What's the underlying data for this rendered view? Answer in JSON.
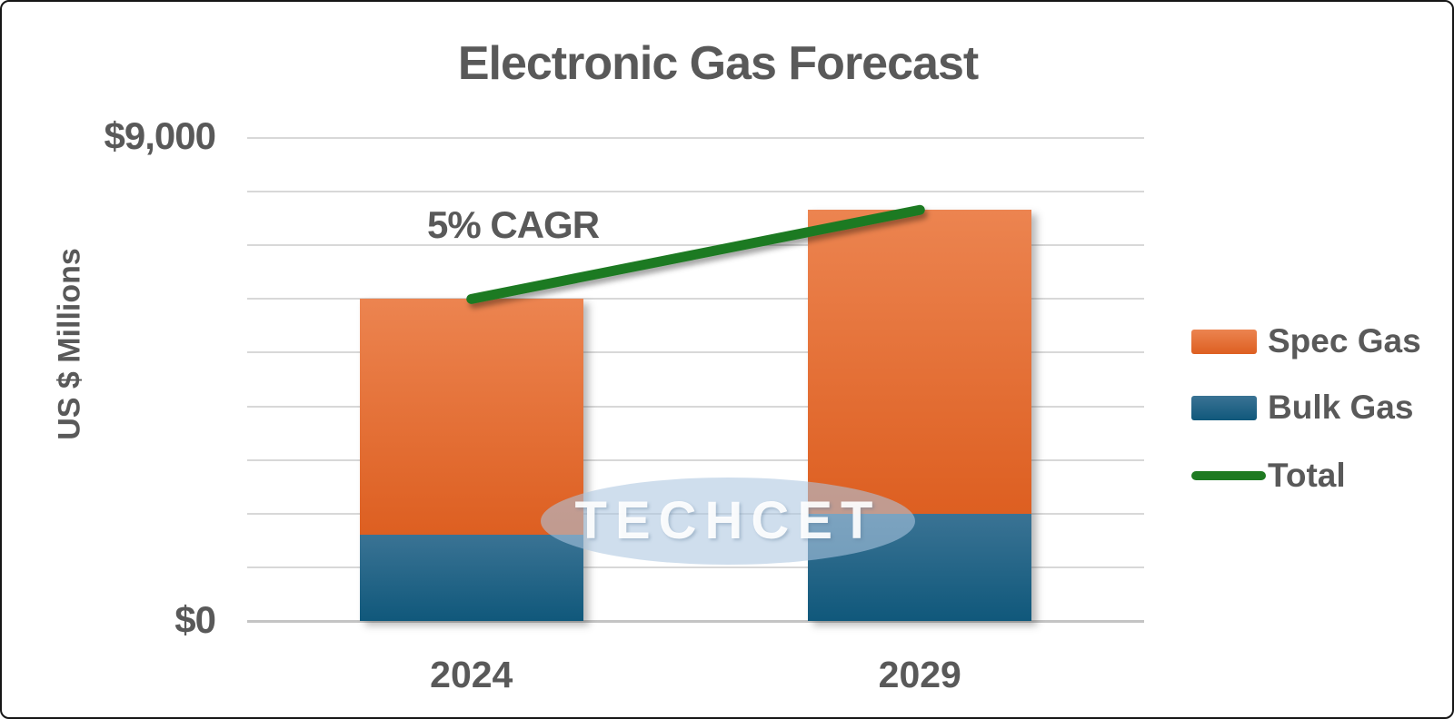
{
  "title": "Electronic Gas Forecast",
  "annotation": "5% CAGR",
  "watermark": "TECHCET",
  "y_axis": {
    "label": "US $ Millions",
    "top_tick": "$9,000",
    "bottom_tick": "$0"
  },
  "legend": {
    "items": [
      "Spec Gas",
      "Bulk Gas",
      "Total"
    ]
  },
  "colors": {
    "text": "#595959",
    "gridline": "#d8d8d8",
    "spec_top": "#ec8450",
    "spec_bottom": "#dd5f21",
    "bulk_top": "#3a7394",
    "bulk_bottom": "#10587b",
    "total_line": "#1e7a21",
    "watermark_band": "#aec6e0",
    "watermark_text": "#ffffff",
    "frame_border": "#161616"
  },
  "chart_data": {
    "type": "bar",
    "stacked": true,
    "title": "Electronic Gas Forecast",
    "ylabel": "US $ Millions",
    "xlabel": "",
    "categories": [
      "2024",
      "2029"
    ],
    "series": [
      {
        "name": "Bulk Gas",
        "type": "bar",
        "color": "#10587b",
        "values": [
          1600,
          2000
        ]
      },
      {
        "name": "Spec Gas",
        "type": "bar",
        "color": "#e06423",
        "values": [
          4400,
          5660
        ]
      },
      {
        "name": "Total",
        "type": "line",
        "color": "#1e7a21",
        "values": [
          6000,
          7660
        ]
      }
    ],
    "annotation": "5% CAGR",
    "ylim": [
      0,
      9000
    ],
    "gridline_step": 1000,
    "grid": true,
    "visible_tick_labels": [
      "$0",
      "$9,000"
    ],
    "legend_position": "right"
  }
}
